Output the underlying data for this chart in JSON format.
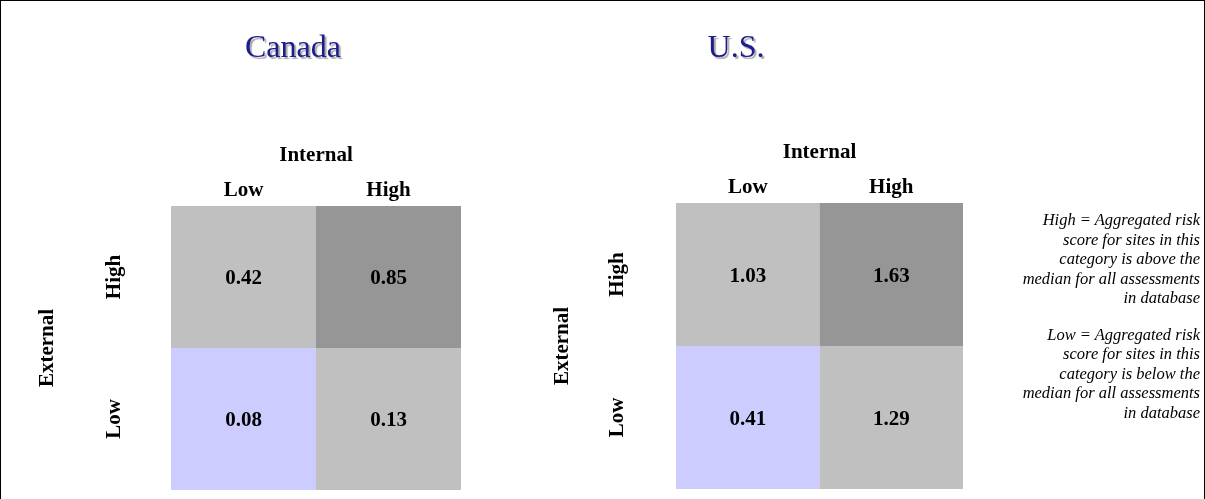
{
  "chart_data": [
    {
      "type": "heatmap",
      "title": "Canada",
      "xlabel": "Internal",
      "ylabel": "External",
      "categories": [
        "Low",
        "High"
      ],
      "y_categories": [
        "High",
        "Low"
      ],
      "cells": [
        [
          0.42,
          0.85
        ],
        [
          0.08,
          0.13
        ]
      ],
      "colors": [
        [
          "#c0c0c0",
          "#969696"
        ],
        [
          "#ccccff",
          "#c0c0c0"
        ]
      ],
      "data_labels": true
    },
    {
      "type": "heatmap",
      "title": "U.S.",
      "xlabel": "Internal",
      "ylabel": "External",
      "categories": [
        "Low",
        "High"
      ],
      "y_categories": [
        "High",
        "Low"
      ],
      "cells": [
        [
          1.03,
          1.63
        ],
        [
          0.41,
          1.29
        ]
      ],
      "colors": [
        [
          "#c0c0c0",
          "#969696"
        ],
        [
          "#ccccff",
          "#c0c0c0"
        ]
      ],
      "data_labels": true,
      "annotations": [
        "High = Aggregated risk score for sites in this category is above the median  for all assessments in database",
        "Low = Aggregated risk score for sites in this category is below the median  for all assessments in database"
      ]
    }
  ]
}
